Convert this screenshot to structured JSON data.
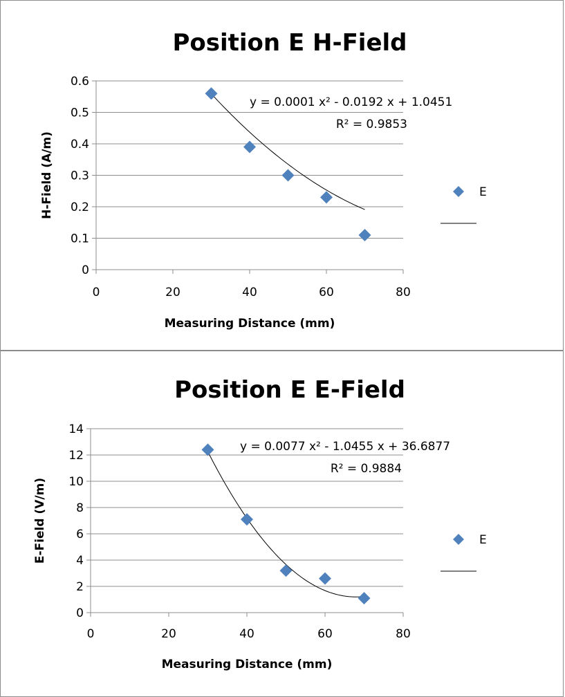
{
  "chart_data": [
    {
      "type": "scatter",
      "title": "Position E H-Field",
      "xlabel": "Measuring Distance (mm)",
      "ylabel": "H-Field (A/m)",
      "xlim": [
        0,
        80
      ],
      "ylim": [
        0,
        0.6
      ],
      "x_ticks": [
        "0",
        "20",
        "40",
        "60",
        "80"
      ],
      "y_ticks": [
        "0",
        "0.1",
        "0.2",
        "0.3",
        "0.4",
        "0.5",
        "0.6"
      ],
      "grid": "horizontal",
      "legend_position": "right",
      "series": [
        {
          "name": "E",
          "color": "#4f81bd",
          "marker": "diamond",
          "points": [
            [
              30,
              0.56
            ],
            [
              40,
              0.39
            ],
            [
              50,
              0.3
            ],
            [
              60,
              0.23
            ],
            [
              70,
              0.11
            ]
          ]
        }
      ],
      "trendline": {
        "type": "polynomial",
        "coefficients": [
          0.0001,
          -0.0192,
          1.0451
        ],
        "x_range": [
          30,
          70
        ],
        "equation": "y = 0.0001 x² - 0.0192 x + 1.0451",
        "r_squared": "R² = 0.9853"
      }
    },
    {
      "type": "scatter",
      "title": "Position E E-Field",
      "xlabel": "Measuring Distance (mm)",
      "ylabel": "E-Field (V/m)",
      "xlim": [
        0,
        80
      ],
      "ylim": [
        0,
        14
      ],
      "x_ticks": [
        "0",
        "20",
        "40",
        "60",
        "80"
      ],
      "y_ticks": [
        "0",
        "2",
        "4",
        "6",
        "8",
        "10",
        "12",
        "14"
      ],
      "grid": "horizontal",
      "legend_position": "right",
      "series": [
        {
          "name": "E",
          "color": "#4f81bd",
          "marker": "diamond",
          "points": [
            [
              30,
              12.4
            ],
            [
              40,
              7.1
            ],
            [
              50,
              3.2
            ],
            [
              60,
              2.6
            ],
            [
              70,
              1.1
            ]
          ]
        }
      ],
      "trendline": {
        "type": "polynomial",
        "coefficients": [
          0.0077,
          -1.0455,
          36.6877
        ],
        "x_range": [
          30,
          70
        ],
        "equation": "y = 0.0077 x² - 1.0455 x + 36.6877",
        "r_squared": "R² = 0.9884"
      }
    }
  ]
}
